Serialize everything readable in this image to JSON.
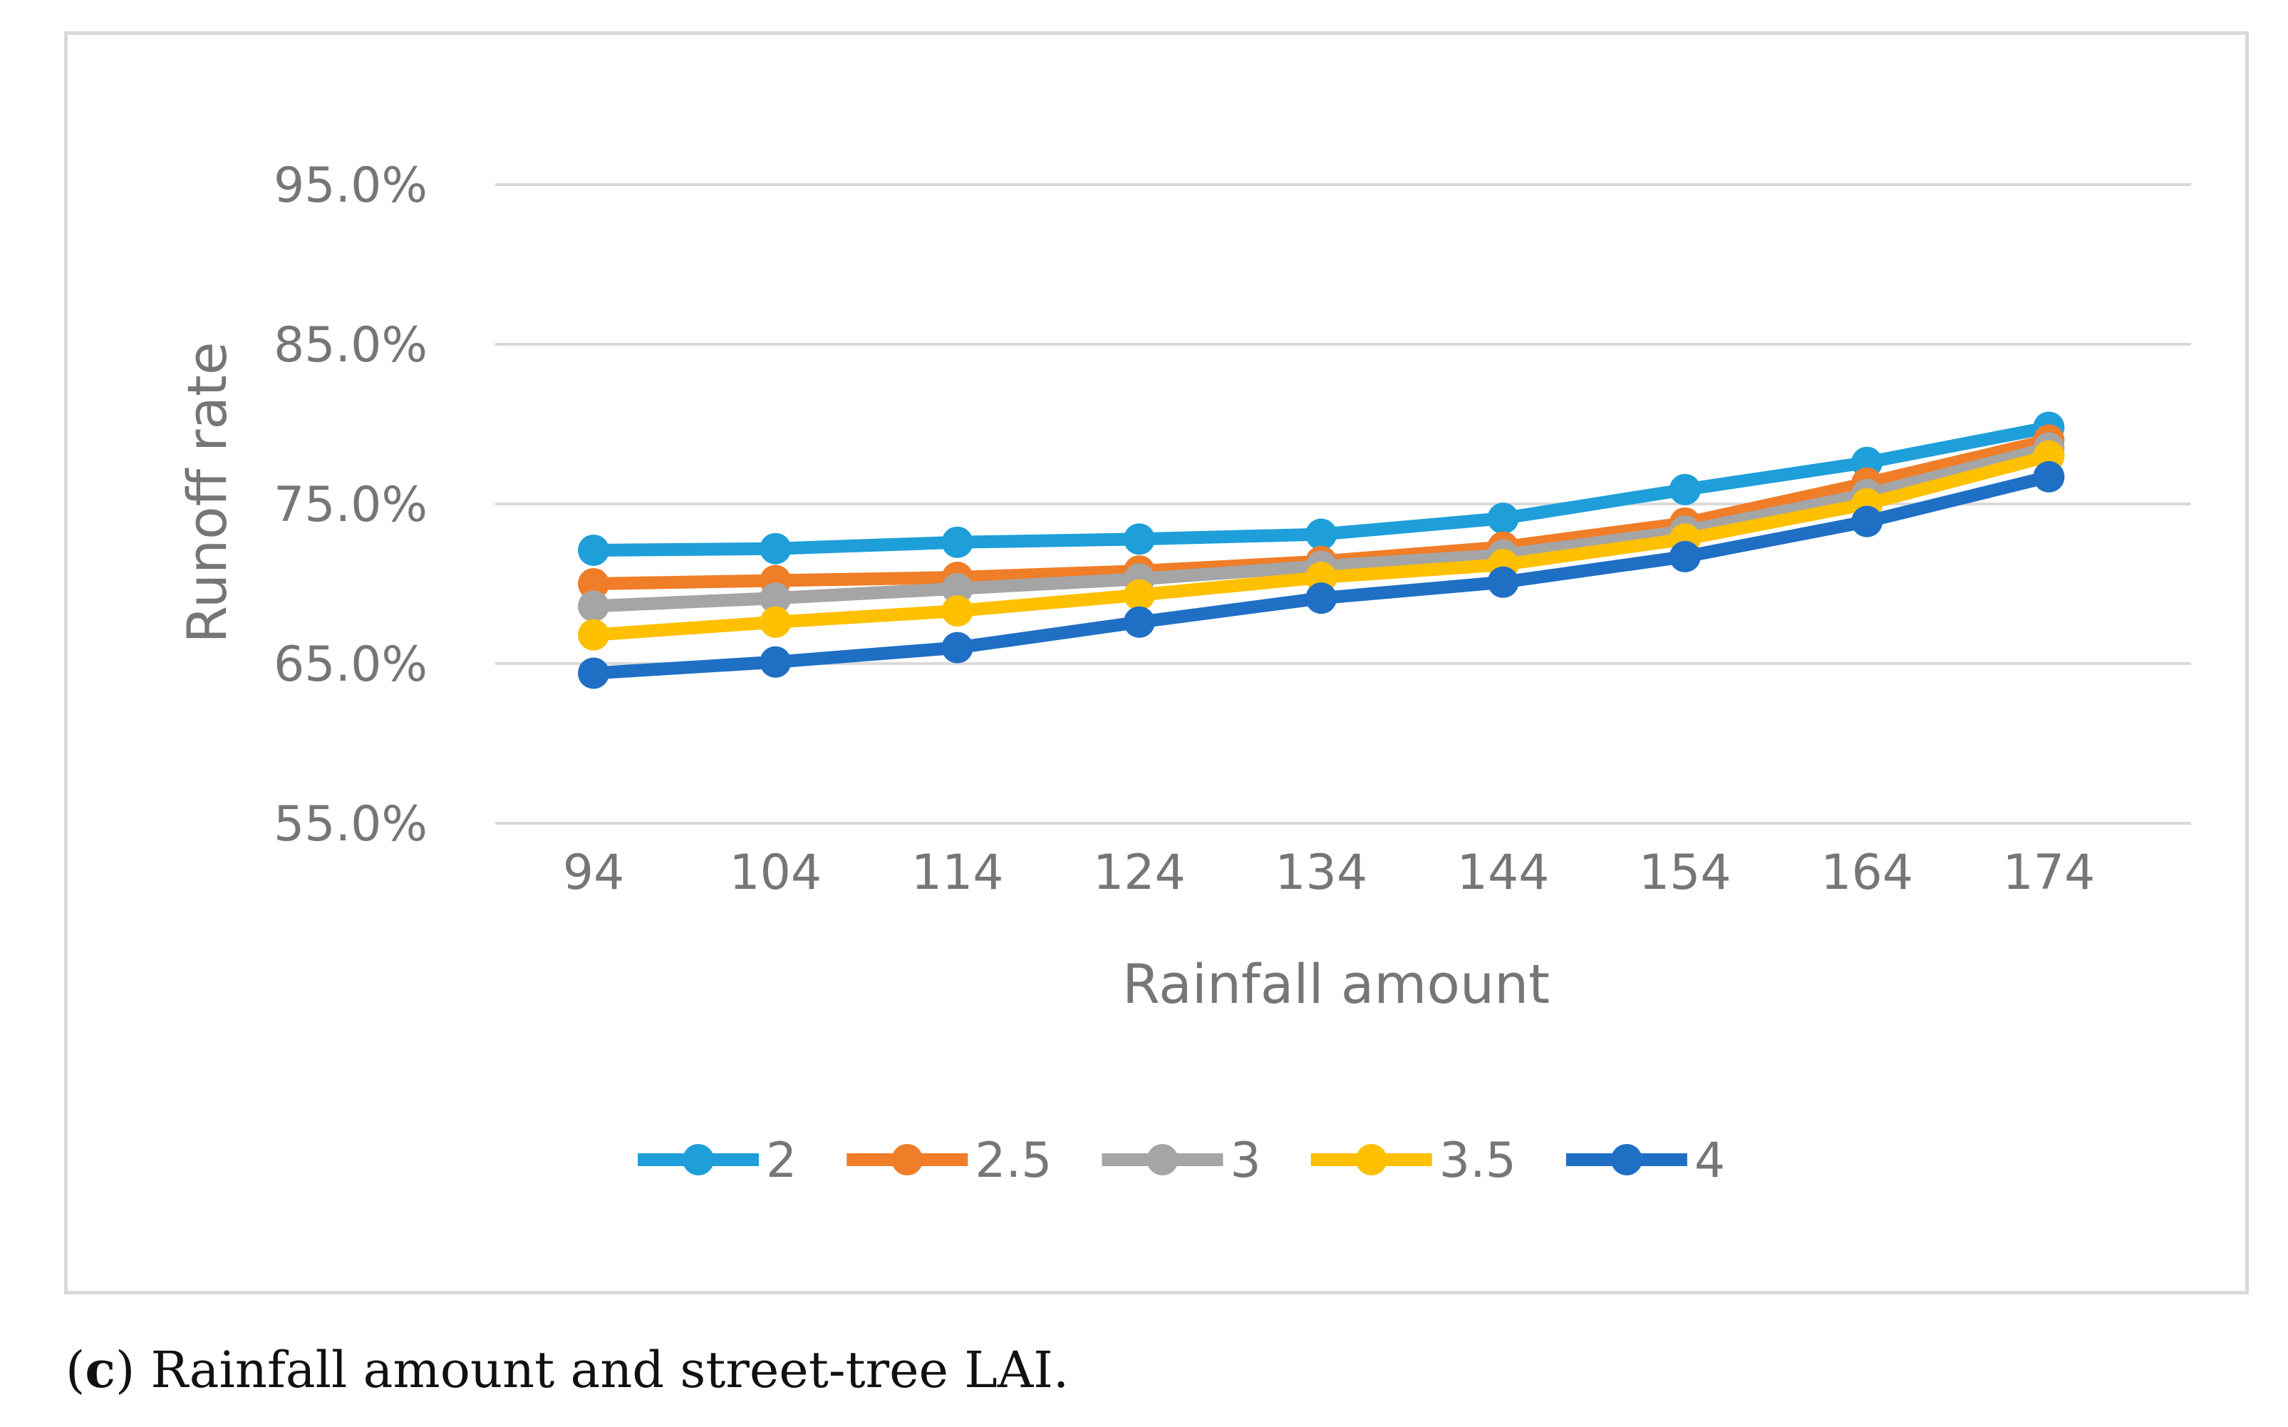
{
  "caption": {
    "label": "c",
    "text": "Rainfall amount and street-tree LAI."
  },
  "chart_data": {
    "type": "line",
    "title": "",
    "xlabel": "Rainfall amount",
    "ylabel": "Runoff rate",
    "categories": [
      "94",
      "104",
      "114",
      "124",
      "134",
      "144",
      "154",
      "164",
      "174"
    ],
    "ylim": [
      55.0,
      95.0
    ],
    "yticks": [
      "55.0%",
      "65.0%",
      "75.0%",
      "85.0%",
      "95.0%"
    ],
    "grid": true,
    "legend_position": "bottom",
    "series": [
      {
        "name": "2",
        "color": "#1f9fd9",
        "values": [
          72.1,
          72.2,
          72.6,
          72.8,
          73.1,
          74.1,
          75.9,
          77.6,
          79.8
        ]
      },
      {
        "name": "2.5",
        "color": "#f07d27",
        "values": [
          70.0,
          70.2,
          70.4,
          70.8,
          71.4,
          72.3,
          73.8,
          76.3,
          79.0
        ]
      },
      {
        "name": "3",
        "color": "#a5a5a5",
        "values": [
          68.6,
          69.1,
          69.7,
          70.3,
          71.1,
          71.8,
          73.3,
          75.6,
          78.5
        ]
      },
      {
        "name": "3.5",
        "color": "#ffc000",
        "values": [
          66.8,
          67.6,
          68.3,
          69.3,
          70.4,
          71.2,
          72.8,
          75.0,
          78.0
        ]
      },
      {
        "name": "4",
        "color": "#1f6fc5",
        "values": [
          64.4,
          65.1,
          66.0,
          67.6,
          69.1,
          70.1,
          71.7,
          73.9,
          76.7
        ]
      }
    ]
  }
}
